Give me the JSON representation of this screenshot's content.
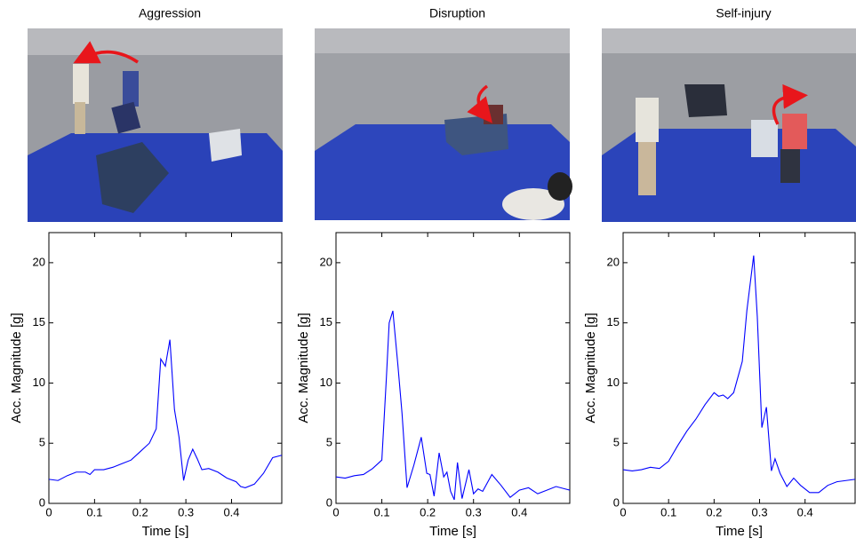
{
  "chart_data": [
    {
      "type": "line",
      "title": "Aggression",
      "xlabel": "Time [s]",
      "ylabel": "Acc. Magnitude [g]",
      "xlim": [
        0,
        0.51
      ],
      "ylim": [
        0,
        22.5
      ],
      "xticks": [
        0,
        0.1,
        0.2,
        0.3,
        0.4
      ],
      "yticks": [
        0,
        5,
        10,
        15,
        20
      ],
      "series": [
        {
          "color": "#0000ff",
          "x": [
            0,
            0.02,
            0.04,
            0.06,
            0.08,
            0.09,
            0.1,
            0.12,
            0.14,
            0.16,
            0.18,
            0.2,
            0.22,
            0.235,
            0.245,
            0.255,
            0.265,
            0.275,
            0.285,
            0.295,
            0.305,
            0.315,
            0.325,
            0.335,
            0.35,
            0.37,
            0.39,
            0.41,
            0.42,
            0.43,
            0.45,
            0.47,
            0.49,
            0.51
          ],
          "values": [
            2.0,
            1.9,
            2.3,
            2.6,
            2.6,
            2.4,
            2.8,
            2.8,
            3.0,
            3.3,
            3.6,
            4.3,
            5.0,
            6.2,
            12.0,
            11.4,
            13.6,
            7.8,
            5.5,
            1.9,
            3.6,
            4.5,
            3.7,
            2.8,
            2.9,
            2.6,
            2.1,
            1.8,
            1.4,
            1.3,
            1.6,
            2.5,
            3.8,
            4.0
          ]
        }
      ]
    },
    {
      "type": "line",
      "title": "Disruption",
      "xlabel": "Time [s]",
      "ylabel": "Acc. Magnitude [g]",
      "xlim": [
        0,
        0.51
      ],
      "ylim": [
        0,
        22.5
      ],
      "xticks": [
        0,
        0.1,
        0.2,
        0.3,
        0.4
      ],
      "yticks": [
        0,
        5,
        10,
        15,
        20
      ],
      "series": [
        {
          "color": "#0000ff",
          "x": [
            0,
            0.02,
            0.04,
            0.06,
            0.08,
            0.1,
            0.11,
            0.116,
            0.124,
            0.135,
            0.144,
            0.155,
            0.17,
            0.186,
            0.198,
            0.205,
            0.214,
            0.225,
            0.235,
            0.242,
            0.25,
            0.258,
            0.265,
            0.275,
            0.29,
            0.3,
            0.31,
            0.32,
            0.34,
            0.36,
            0.38,
            0.4,
            0.42,
            0.44,
            0.46,
            0.48,
            0.5,
            0.51
          ],
          "values": [
            2.2,
            2.1,
            2.3,
            2.4,
            2.9,
            3.6,
            10.5,
            15.0,
            16.0,
            11.5,
            7.5,
            1.3,
            3.2,
            5.5,
            2.5,
            2.4,
            0.6,
            4.2,
            2.2,
            2.6,
            1.0,
            0.3,
            3.4,
            0.4,
            2.8,
            0.8,
            1.2,
            1.0,
            2.4,
            1.5,
            0.5,
            1.1,
            1.3,
            0.8,
            1.1,
            1.4,
            1.2,
            1.1
          ]
        }
      ]
    },
    {
      "type": "line",
      "title": "Self-injury",
      "xlabel": "Time [s]",
      "ylabel": "Acc. Magnitude [g]",
      "xlim": [
        0,
        0.51
      ],
      "ylim": [
        0,
        22.5
      ],
      "xticks": [
        0,
        0.1,
        0.2,
        0.3,
        0.4
      ],
      "yticks": [
        0,
        5,
        10,
        15,
        20
      ],
      "series": [
        {
          "color": "#0000ff",
          "x": [
            0,
            0.02,
            0.04,
            0.06,
            0.08,
            0.1,
            0.12,
            0.14,
            0.16,
            0.18,
            0.2,
            0.21,
            0.22,
            0.23,
            0.243,
            0.262,
            0.272,
            0.287,
            0.295,
            0.305,
            0.315,
            0.326,
            0.334,
            0.345,
            0.36,
            0.375,
            0.39,
            0.41,
            0.43,
            0.45,
            0.47,
            0.49,
            0.51
          ],
          "values": [
            2.8,
            2.7,
            2.8,
            3.0,
            2.9,
            3.5,
            4.8,
            6.0,
            7.0,
            8.2,
            9.2,
            8.9,
            9.0,
            8.7,
            9.2,
            11.8,
            16.0,
            20.6,
            15.5,
            6.3,
            8.0,
            2.7,
            3.7,
            2.5,
            1.4,
            2.1,
            1.5,
            0.9,
            0.9,
            1.5,
            1.8,
            1.9,
            2.0
          ]
        }
      ]
    }
  ]
}
